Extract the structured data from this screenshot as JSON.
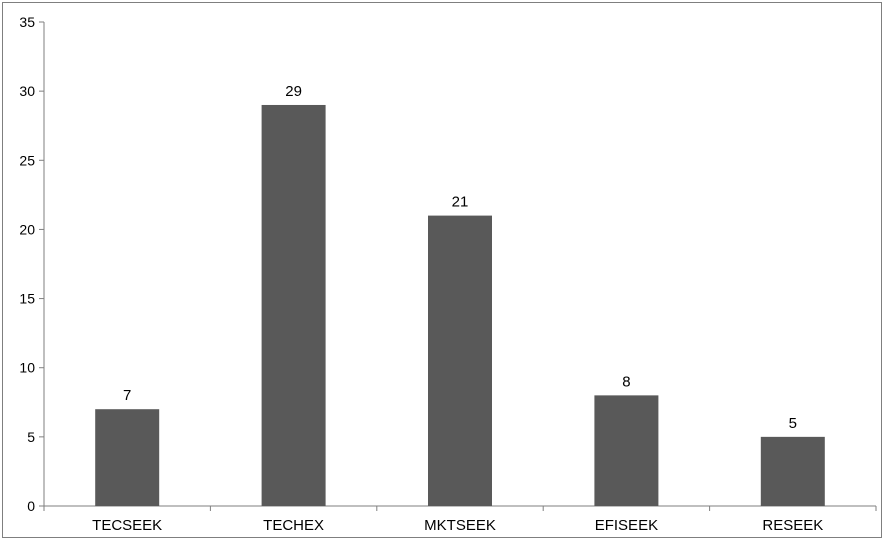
{
  "chart_data": {
    "type": "bar",
    "title": "",
    "xlabel": "",
    "ylabel": "",
    "categories": [
      "TECSEEK",
      "TECHEX",
      "MKTSEEK",
      "EFISEEK",
      "RESEEK"
    ],
    "values": [
      7,
      29,
      21,
      8,
      5
    ],
    "data_labels": [
      "7",
      "29",
      "21",
      "8",
      "5"
    ],
    "ylim": [
      0,
      35
    ],
    "yticks": [
      0,
      5,
      10,
      15,
      20,
      25,
      30,
      35
    ],
    "grid": false,
    "legend": "none",
    "bar_color": "#595959",
    "axis_color": "#7f7f7f"
  }
}
